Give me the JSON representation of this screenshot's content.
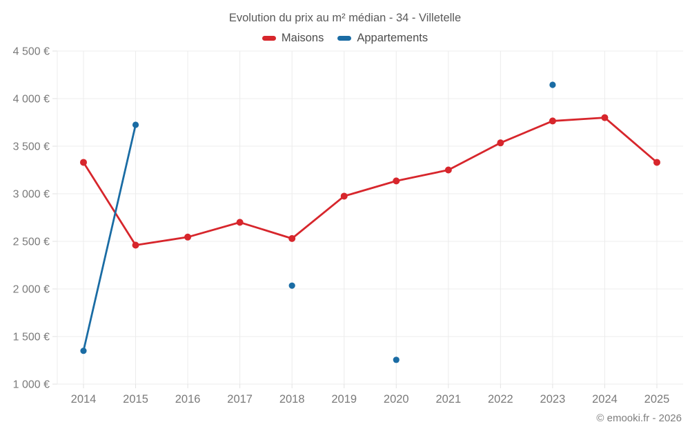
{
  "chart": {
    "credits": "© emooki.fr - 2026"
  },
  "chart_data": {
    "type": "line",
    "title": "Evolution du prix au m² médian - 34 - Villetelle",
    "categories": [
      "2014",
      "2015",
      "2016",
      "2017",
      "2018",
      "2019",
      "2020",
      "2021",
      "2022",
      "2023",
      "2024",
      "2025"
    ],
    "series": [
      {
        "name": "Maisons",
        "color": "#d7262c",
        "values": [
          3330,
          2460,
          2545,
          2700,
          2530,
          2975,
          3135,
          3250,
          3535,
          3765,
          3800,
          3330
        ]
      },
      {
        "name": "Appartements",
        "color": "#1a6ca4",
        "values": [
          1350,
          3725,
          null,
          null,
          2035,
          null,
          1255,
          null,
          null,
          4145,
          null,
          null
        ]
      }
    ],
    "xlabel": "",
    "ylabel": "",
    "ylim": [
      1000,
      4500
    ],
    "ytick_step": 500,
    "ytick_suffix": " €",
    "grid": true,
    "legend_position": "top",
    "text_colors": {
      "axis_labels": "#7a7a7a",
      "grid": "#ececec",
      "tick": "#e2e2e2"
    }
  }
}
